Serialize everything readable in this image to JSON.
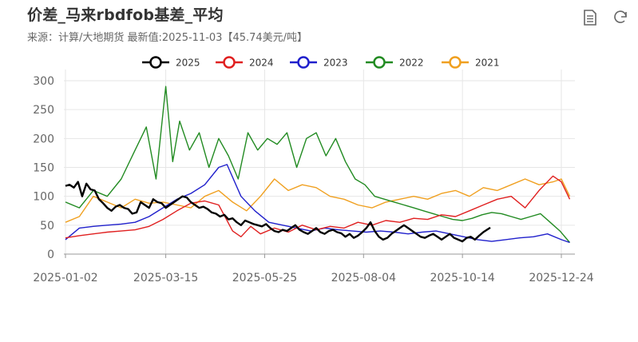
{
  "header": {
    "title": "价差_马来rbdfob基差_平均",
    "subtitle": "来源：计算/大地期货  最新值:2025-11-03【45.74美元/吨】"
  },
  "toolbar": {
    "data_view_icon": "document-icon",
    "refresh_icon": "refresh-icon"
  },
  "chart_data": {
    "type": "line",
    "title": "价差_马来rbdfob基差_平均",
    "xlabel": "",
    "ylabel": "",
    "ylim": [
      0,
      300
    ],
    "y_ticks": [
      0,
      50,
      100,
      150,
      200,
      250,
      300
    ],
    "x_ticks": [
      "2025-01-02",
      "2025-03-15",
      "2025-05-25",
      "2025-08-04",
      "2025-10-14",
      "2025-12-24"
    ],
    "x_range": [
      "2025-01-02",
      "2025-12-30"
    ],
    "grid": true,
    "legend_position": "top",
    "series": [
      {
        "name": "2025",
        "color": "#000000",
        "points": [
          [
            "2025-01-02",
            118
          ],
          [
            "2025-01-05",
            120
          ],
          [
            "2025-01-08",
            115
          ],
          [
            "2025-01-11",
            125
          ],
          [
            "2025-01-14",
            100
          ],
          [
            "2025-01-17",
            122
          ],
          [
            "2025-01-20",
            112
          ],
          [
            "2025-01-23",
            110
          ],
          [
            "2025-01-26",
            95
          ],
          [
            "2025-01-29",
            88
          ],
          [
            "2025-02-01",
            80
          ],
          [
            "2025-02-04",
            75
          ],
          [
            "2025-02-07",
            82
          ],
          [
            "2025-02-10",
            85
          ],
          [
            "2025-02-13",
            80
          ],
          [
            "2025-02-16",
            78
          ],
          [
            "2025-02-19",
            70
          ],
          [
            "2025-02-22",
            72
          ],
          [
            "2025-02-25",
            90
          ],
          [
            "2025-02-28",
            85
          ],
          [
            "2025-03-03",
            80
          ],
          [
            "2025-03-06",
            95
          ],
          [
            "2025-03-09",
            90
          ],
          [
            "2025-03-12",
            88
          ],
          [
            "2025-03-15",
            80
          ],
          [
            "2025-03-18",
            85
          ],
          [
            "2025-03-21",
            90
          ],
          [
            "2025-03-24",
            95
          ],
          [
            "2025-03-27",
            100
          ],
          [
            "2025-03-30",
            98
          ],
          [
            "2025-04-02",
            90
          ],
          [
            "2025-04-05",
            85
          ],
          [
            "2025-04-08",
            80
          ],
          [
            "2025-04-11",
            82
          ],
          [
            "2025-04-14",
            78
          ],
          [
            "2025-04-17",
            72
          ],
          [
            "2025-04-20",
            70
          ],
          [
            "2025-04-23",
            65
          ],
          [
            "2025-04-26",
            68
          ],
          [
            "2025-04-29",
            60
          ],
          [
            "2025-05-02",
            62
          ],
          [
            "2025-05-05",
            55
          ],
          [
            "2025-05-08",
            50
          ],
          [
            "2025-05-11",
            58
          ],
          [
            "2025-05-14",
            55
          ],
          [
            "2025-05-17",
            52
          ],
          [
            "2025-05-20",
            50
          ],
          [
            "2025-05-23",
            48
          ],
          [
            "2025-05-26",
            52
          ],
          [
            "2025-05-29",
            45
          ],
          [
            "2025-06-01",
            40
          ],
          [
            "2025-06-04",
            38
          ],
          [
            "2025-06-07",
            42
          ],
          [
            "2025-06-10",
            40
          ],
          [
            "2025-06-13",
            45
          ],
          [
            "2025-06-16",
            50
          ],
          [
            "2025-06-19",
            42
          ],
          [
            "2025-06-22",
            38
          ],
          [
            "2025-06-25",
            35
          ],
          [
            "2025-06-28",
            40
          ],
          [
            "2025-07-01",
            45
          ],
          [
            "2025-07-04",
            38
          ],
          [
            "2025-07-07",
            35
          ],
          [
            "2025-07-10",
            40
          ],
          [
            "2025-07-13",
            42
          ],
          [
            "2025-07-16",
            38
          ],
          [
            "2025-07-19",
            36
          ],
          [
            "2025-07-22",
            30
          ],
          [
            "2025-07-25",
            35
          ],
          [
            "2025-07-28",
            28
          ],
          [
            "2025-07-31",
            32
          ],
          [
            "2025-08-03",
            38
          ],
          [
            "2025-08-06",
            45
          ],
          [
            "2025-08-09",
            55
          ],
          [
            "2025-08-12",
            40
          ],
          [
            "2025-08-15",
            30
          ],
          [
            "2025-08-18",
            25
          ],
          [
            "2025-08-21",
            28
          ],
          [
            "2025-08-24",
            35
          ],
          [
            "2025-08-27",
            40
          ],
          [
            "2025-08-30",
            45
          ],
          [
            "2025-09-02",
            50
          ],
          [
            "2025-09-05",
            45
          ],
          [
            "2025-09-08",
            40
          ],
          [
            "2025-09-11",
            35
          ],
          [
            "2025-09-14",
            30
          ],
          [
            "2025-09-17",
            28
          ],
          [
            "2025-09-20",
            32
          ],
          [
            "2025-09-23",
            35
          ],
          [
            "2025-09-26",
            30
          ],
          [
            "2025-09-29",
            25
          ],
          [
            "2025-10-02",
            30
          ],
          [
            "2025-10-05",
            35
          ],
          [
            "2025-10-08",
            28
          ],
          [
            "2025-10-11",
            25
          ],
          [
            "2025-10-14",
            22
          ],
          [
            "2025-10-17",
            28
          ],
          [
            "2025-10-20",
            30
          ],
          [
            "2025-10-23",
            25
          ],
          [
            "2025-10-26",
            32
          ],
          [
            "2025-10-29",
            38
          ],
          [
            "2025-11-03",
            45.74
          ]
        ]
      },
      {
        "name": "2024",
        "color": "#e02020",
        "points": [
          [
            "2025-01-02",
            28
          ],
          [
            "2025-01-12",
            32
          ],
          [
            "2025-01-22",
            35
          ],
          [
            "2025-02-01",
            38
          ],
          [
            "2025-02-11",
            40
          ],
          [
            "2025-02-21",
            42
          ],
          [
            "2025-03-03",
            48
          ],
          [
            "2025-03-13",
            60
          ],
          [
            "2025-03-23",
            75
          ],
          [
            "2025-04-02",
            88
          ],
          [
            "2025-04-12",
            92
          ],
          [
            "2025-04-22",
            85
          ],
          [
            "2025-05-02",
            40
          ],
          [
            "2025-05-08",
            30
          ],
          [
            "2025-05-15",
            48
          ],
          [
            "2025-05-22",
            35
          ],
          [
            "2025-06-01",
            45
          ],
          [
            "2025-06-11",
            38
          ],
          [
            "2025-06-21",
            50
          ],
          [
            "2025-07-01",
            42
          ],
          [
            "2025-07-11",
            48
          ],
          [
            "2025-07-21",
            45
          ],
          [
            "2025-07-31",
            55
          ],
          [
            "2025-08-10",
            50
          ],
          [
            "2025-08-20",
            58
          ],
          [
            "2025-08-30",
            55
          ],
          [
            "2025-09-09",
            62
          ],
          [
            "2025-09-19",
            60
          ],
          [
            "2025-09-29",
            68
          ],
          [
            "2025-10-09",
            65
          ],
          [
            "2025-10-19",
            75
          ],
          [
            "2025-10-29",
            85
          ],
          [
            "2025-11-08",
            95
          ],
          [
            "2025-11-18",
            100
          ],
          [
            "2025-11-28",
            80
          ],
          [
            "2025-12-08",
            110
          ],
          [
            "2025-12-18",
            135
          ],
          [
            "2025-12-24",
            125
          ],
          [
            "2025-12-30",
            95
          ]
        ]
      },
      {
        "name": "2023",
        "color": "#2020cc",
        "points": [
          [
            "2025-01-02",
            25
          ],
          [
            "2025-01-12",
            45
          ],
          [
            "2025-01-22",
            48
          ],
          [
            "2025-02-01",
            50
          ],
          [
            "2025-02-11",
            52
          ],
          [
            "2025-02-21",
            55
          ],
          [
            "2025-03-03",
            65
          ],
          [
            "2025-03-13",
            80
          ],
          [
            "2025-03-23",
            95
          ],
          [
            "2025-04-02",
            105
          ],
          [
            "2025-04-12",
            120
          ],
          [
            "2025-04-22",
            150
          ],
          [
            "2025-04-28",
            155
          ],
          [
            "2025-05-08",
            100
          ],
          [
            "2025-05-18",
            75
          ],
          [
            "2025-05-28",
            55
          ],
          [
            "2025-06-07",
            50
          ],
          [
            "2025-06-17",
            45
          ],
          [
            "2025-06-27",
            40
          ],
          [
            "2025-07-07",
            45
          ],
          [
            "2025-07-17",
            42
          ],
          [
            "2025-07-27",
            40
          ],
          [
            "2025-08-06",
            38
          ],
          [
            "2025-08-16",
            40
          ],
          [
            "2025-08-26",
            38
          ],
          [
            "2025-09-05",
            35
          ],
          [
            "2025-09-15",
            38
          ],
          [
            "2025-09-25",
            40
          ],
          [
            "2025-10-05",
            35
          ],
          [
            "2025-10-15",
            30
          ],
          [
            "2025-10-25",
            25
          ],
          [
            "2025-11-04",
            22
          ],
          [
            "2025-11-14",
            25
          ],
          [
            "2025-11-24",
            28
          ],
          [
            "2025-12-04",
            30
          ],
          [
            "2025-12-14",
            35
          ],
          [
            "2025-12-24",
            25
          ],
          [
            "2025-12-30",
            20
          ]
        ]
      },
      {
        "name": "2022",
        "color": "#228b22",
        "points": [
          [
            "2025-01-02",
            90
          ],
          [
            "2025-01-12",
            80
          ],
          [
            "2025-01-22",
            110
          ],
          [
            "2025-02-01",
            100
          ],
          [
            "2025-02-11",
            130
          ],
          [
            "2025-02-21",
            180
          ],
          [
            "2025-03-01",
            220
          ],
          [
            "2025-03-08",
            130
          ],
          [
            "2025-03-15",
            290
          ],
          [
            "2025-03-20",
            160
          ],
          [
            "2025-03-25",
            230
          ],
          [
            "2025-04-01",
            180
          ],
          [
            "2025-04-08",
            210
          ],
          [
            "2025-04-15",
            150
          ],
          [
            "2025-04-22",
            200
          ],
          [
            "2025-04-29",
            170
          ],
          [
            "2025-05-06",
            130
          ],
          [
            "2025-05-13",
            210
          ],
          [
            "2025-05-20",
            180
          ],
          [
            "2025-05-27",
            200
          ],
          [
            "2025-06-03",
            190
          ],
          [
            "2025-06-10",
            210
          ],
          [
            "2025-06-17",
            150
          ],
          [
            "2025-06-24",
            200
          ],
          [
            "2025-07-01",
            210
          ],
          [
            "2025-07-08",
            170
          ],
          [
            "2025-07-15",
            200
          ],
          [
            "2025-07-22",
            160
          ],
          [
            "2025-07-29",
            130
          ],
          [
            "2025-08-05",
            120
          ],
          [
            "2025-08-12",
            100
          ],
          [
            "2025-08-19",
            95
          ],
          [
            "2025-08-26",
            90
          ],
          [
            "2025-09-02",
            85
          ],
          [
            "2025-09-09",
            80
          ],
          [
            "2025-09-16",
            75
          ],
          [
            "2025-09-23",
            70
          ],
          [
            "2025-09-30",
            65
          ],
          [
            "2025-10-07",
            60
          ],
          [
            "2025-10-14",
            58
          ],
          [
            "2025-10-21",
            62
          ],
          [
            "2025-10-28",
            68
          ],
          [
            "2025-11-04",
            72
          ],
          [
            "2025-11-11",
            70
          ],
          [
            "2025-11-18",
            65
          ],
          [
            "2025-11-25",
            60
          ],
          [
            "2025-12-02",
            65
          ],
          [
            "2025-12-09",
            70
          ],
          [
            "2025-12-16",
            55
          ],
          [
            "2025-12-23",
            40
          ],
          [
            "2025-12-30",
            20
          ]
        ]
      },
      {
        "name": "2021",
        "color": "#f0a020",
        "points": [
          [
            "2025-01-02",
            55
          ],
          [
            "2025-01-12",
            65
          ],
          [
            "2025-01-22",
            100
          ],
          [
            "2025-02-01",
            90
          ],
          [
            "2025-02-11",
            80
          ],
          [
            "2025-02-21",
            95
          ],
          [
            "2025-03-03",
            88
          ],
          [
            "2025-03-13",
            90
          ],
          [
            "2025-03-23",
            85
          ],
          [
            "2025-04-02",
            80
          ],
          [
            "2025-04-12",
            100
          ],
          [
            "2025-04-22",
            110
          ],
          [
            "2025-05-02",
            90
          ],
          [
            "2025-05-12",
            75
          ],
          [
            "2025-05-22",
            100
          ],
          [
            "2025-06-01",
            130
          ],
          [
            "2025-06-11",
            110
          ],
          [
            "2025-06-21",
            120
          ],
          [
            "2025-07-01",
            115
          ],
          [
            "2025-07-11",
            100
          ],
          [
            "2025-07-21",
            95
          ],
          [
            "2025-07-31",
            85
          ],
          [
            "2025-08-10",
            80
          ],
          [
            "2025-08-20",
            90
          ],
          [
            "2025-08-30",
            95
          ],
          [
            "2025-09-09",
            100
          ],
          [
            "2025-09-19",
            95
          ],
          [
            "2025-09-29",
            105
          ],
          [
            "2025-10-09",
            110
          ],
          [
            "2025-10-19",
            100
          ],
          [
            "2025-10-29",
            115
          ],
          [
            "2025-11-08",
            110
          ],
          [
            "2025-11-18",
            120
          ],
          [
            "2025-11-28",
            130
          ],
          [
            "2025-12-08",
            120
          ],
          [
            "2025-12-18",
            125
          ],
          [
            "2025-12-24",
            130
          ],
          [
            "2025-12-30",
            100
          ]
        ]
      }
    ]
  }
}
